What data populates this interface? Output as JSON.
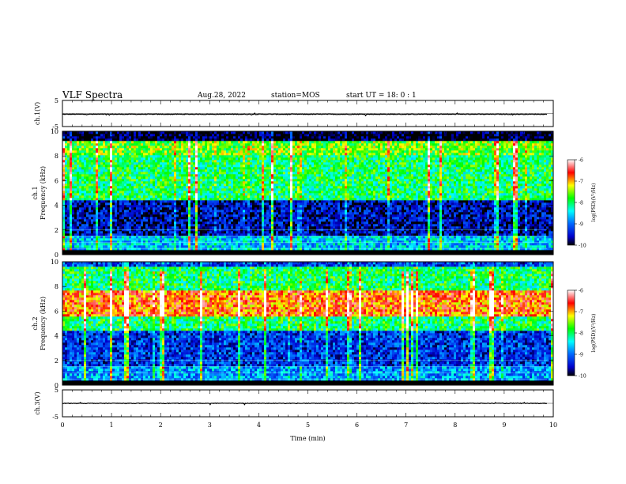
{
  "header": {
    "title": "VLF Spectra",
    "date": "Aug.28, 2022",
    "station": "station=MOS",
    "start": "start UT =  18: 0 : 1"
  },
  "chart_data": [
    {
      "id": "ch1-waveform",
      "type": "line",
      "ylabel": "ch.1(V)",
      "ylim": [
        -5,
        5
      ],
      "yticks": [
        "5",
        "-5"
      ],
      "xlim": [
        0,
        10
      ],
      "series": [
        {
          "values_description_none": "",
          "level": -0.3
        }
      ]
    },
    {
      "id": "ch1-spectrogram",
      "type": "heatmap",
      "ylabel": "ch.1",
      "ylabel2": "Frequency (kHz)",
      "ylim": [
        0,
        10
      ],
      "yticks": [
        "0",
        "2",
        "4",
        "6",
        "8",
        "10"
      ],
      "xlim": [
        0,
        10
      ],
      "colorbar": {
        "label": "log(PSD)(V²/Hz)",
        "ticks": [
          "-6",
          "-7",
          "-8",
          "-9",
          "-10"
        ],
        "range": [
          -10,
          -6
        ]
      },
      "bands": [
        {
          "from": 0,
          "to": 1.5,
          "level": -8.6
        },
        {
          "from": 1.5,
          "to": 4.5,
          "level": -9.6
        },
        {
          "from": 4.5,
          "to": 8.0,
          "level": -8.0
        },
        {
          "from": 8.0,
          "to": 9.2,
          "level": -7.6
        },
        {
          "from": 9.2,
          "to": 10,
          "level": -10
        }
      ]
    },
    {
      "id": "ch2-spectrogram",
      "type": "heatmap",
      "ylabel": "ch.2",
      "ylabel2": "Frequency (kHz)",
      "ylim": [
        0,
        10
      ],
      "yticks": [
        "0",
        "2",
        "4",
        "6",
        "8",
        "10"
      ],
      "xlim": [
        0,
        10
      ],
      "colorbar": {
        "label": "log(PSD)(V²/Hz)",
        "ticks": [
          "-6",
          "-7",
          "-8",
          "-9",
          "-10"
        ],
        "range": [
          -10,
          -6
        ]
      },
      "bands": [
        {
          "from": 0,
          "to": 1.5,
          "level": -8.8
        },
        {
          "from": 1.5,
          "to": 4.5,
          "level": -9.3
        },
        {
          "from": 4.5,
          "to": 5.6,
          "level": -8.0
        },
        {
          "from": 5.6,
          "to": 7.6,
          "level": -6.8
        },
        {
          "from": 7.6,
          "to": 9.6,
          "level": -8.0
        },
        {
          "from": 9.6,
          "to": 10,
          "level": -9.2
        }
      ]
    },
    {
      "id": "ch3-waveform",
      "type": "line",
      "ylabel": "ch.3(V)",
      "ylim": [
        -5,
        5
      ],
      "yticks": [
        "5",
        "-5"
      ],
      "xlim": [
        0,
        10
      ],
      "xlabel": "Time (min)",
      "xticks": [
        "0",
        "1",
        "2",
        "3",
        "4",
        "5",
        "6",
        "7",
        "8",
        "9",
        "10"
      ],
      "series": [
        {
          "level": 0
        }
      ]
    }
  ]
}
